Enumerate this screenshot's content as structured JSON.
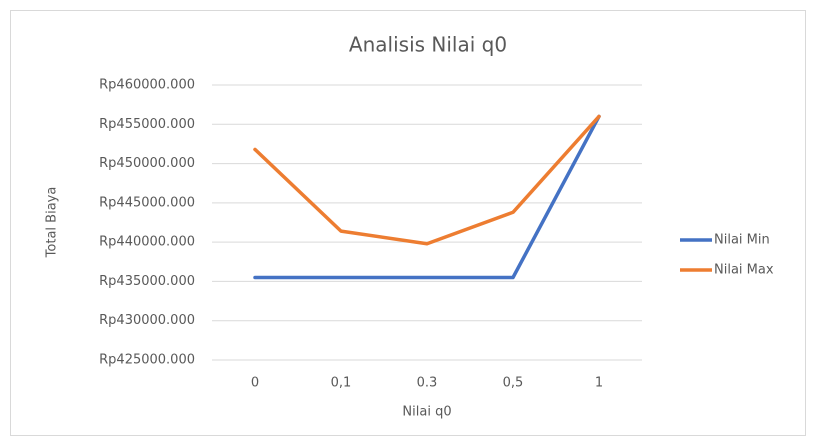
{
  "chart_data": {
    "type": "line",
    "title": "Analisis Nilai q0",
    "x_label": "Nilai q0",
    "y_label": "Total Biaya",
    "categories": [
      "0",
      "0,1",
      "0.3",
      "0,5",
      "1"
    ],
    "series": [
      {
        "name": "Nilai Min",
        "color": "#4472c4",
        "values": [
          435500,
          435500,
          435500,
          435500,
          456000
        ]
      },
      {
        "name": "Nilai Max",
        "color": "#ed7d31",
        "values": [
          451800,
          441400,
          439800,
          443800,
          456000
        ]
      }
    ],
    "ylim": [
      425000,
      460000
    ],
    "yticks": [
      {
        "value": 425000,
        "label": "Rp425000.000"
      },
      {
        "value": 430000,
        "label": "Rp430000.000"
      },
      {
        "value": 435000,
        "label": "Rp435000.000"
      },
      {
        "value": 440000,
        "label": "Rp440000.000"
      },
      {
        "value": 445000,
        "label": "Rp445000.000"
      },
      {
        "value": 450000,
        "label": "Rp450000.000"
      },
      {
        "value": 455000,
        "label": "Rp455000.000"
      },
      {
        "value": 460000,
        "label": "Rp460000.000"
      }
    ],
    "grid": true,
    "legend": "right"
  }
}
